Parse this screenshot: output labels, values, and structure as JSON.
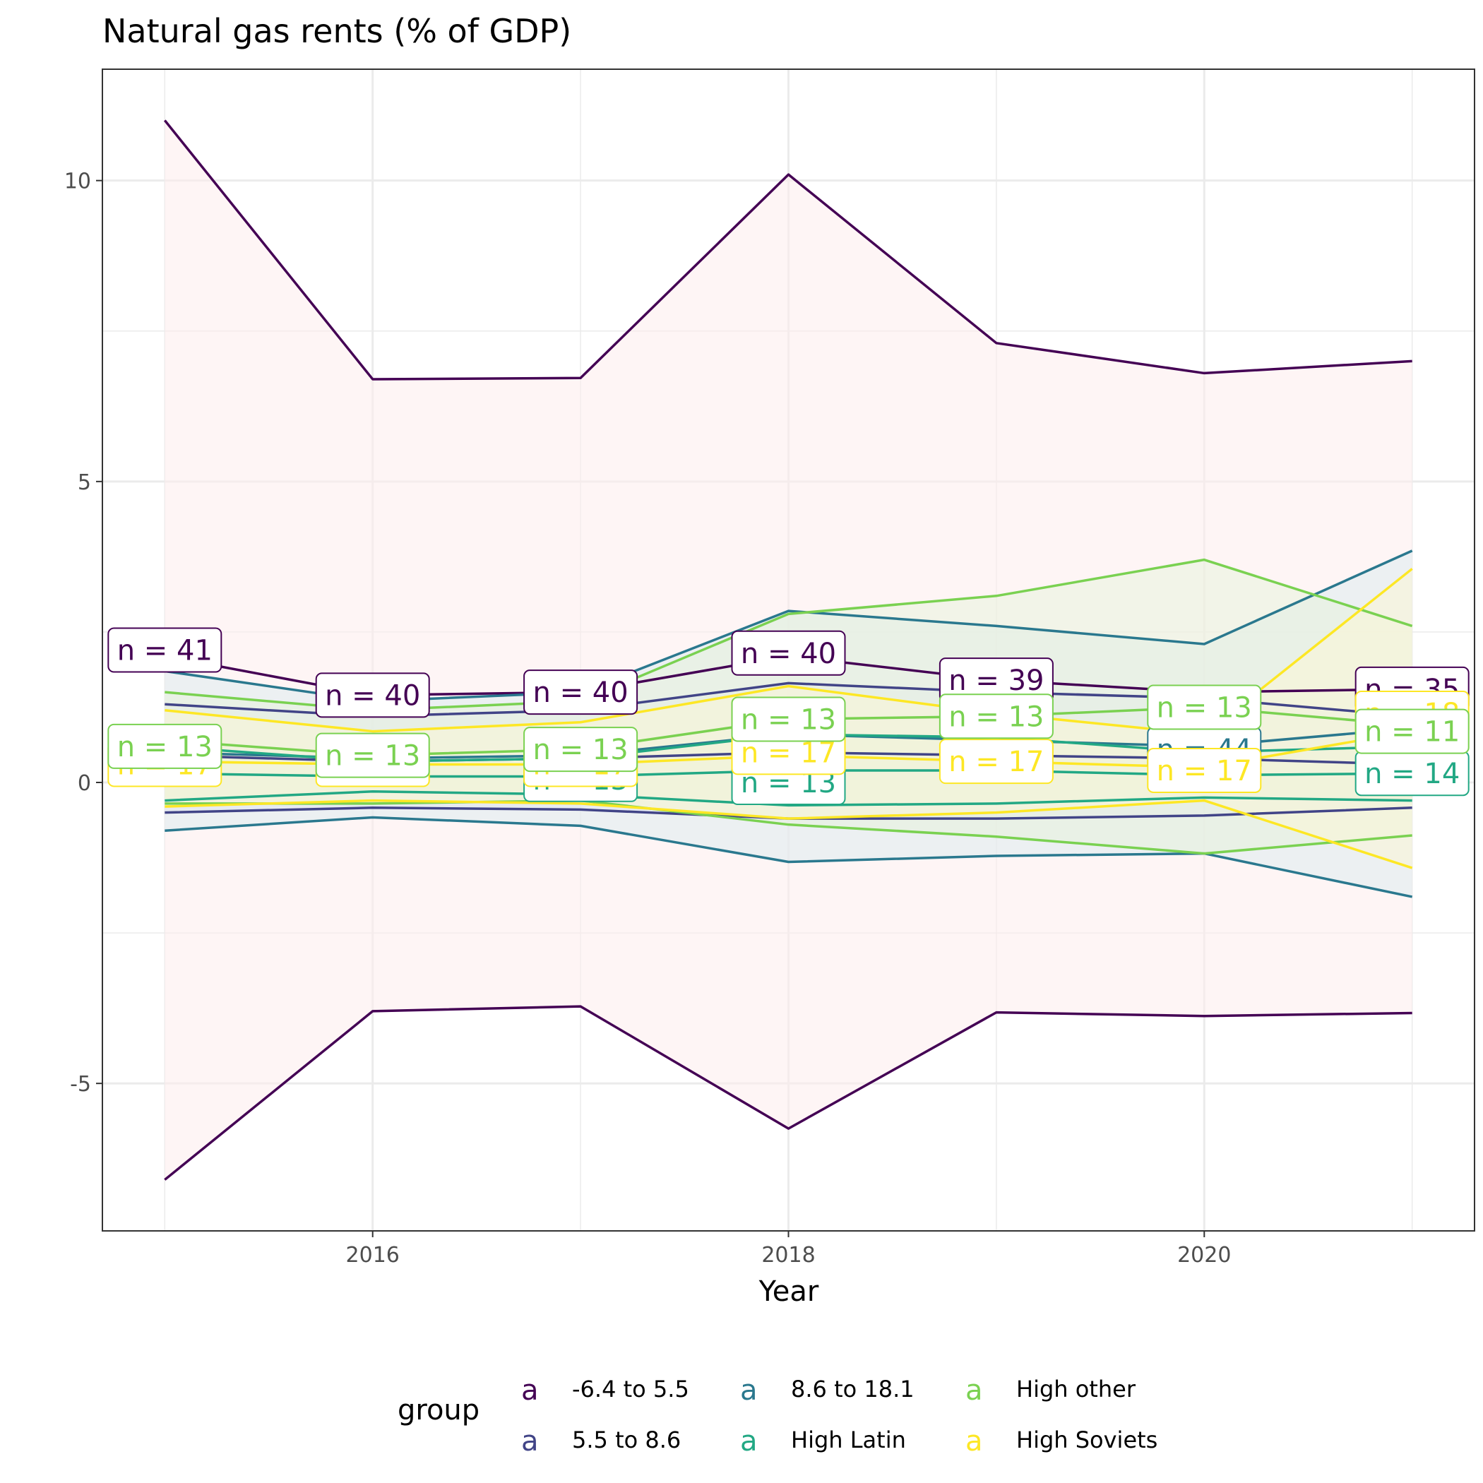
{
  "chart_data": {
    "type": "line",
    "title": "Natural gas rents (% of GDP)",
    "xlabel": "Year",
    "ylabel": "",
    "xlim": [
      2014.7,
      2021.3
    ],
    "ylim": [
      -7.45,
      11.85
    ],
    "x_ticks": [
      2016,
      2018,
      2020
    ],
    "y_ticks": [
      -5,
      0,
      5,
      10
    ],
    "y_tick_labels": [
      "-5",
      "0",
      "5",
      "10"
    ],
    "grid": true,
    "legend": {
      "title": "group",
      "position": "bottom",
      "key_glyph": "a",
      "entries": [
        "-6.4 to 5.5",
        "5.5 to 8.6",
        "8.6 to 18.1",
        "High Latin",
        "High other",
        "High Soviets"
      ]
    },
    "x": [
      2015,
      2016,
      2017,
      2018,
      2019,
      2020,
      2021
    ],
    "series": [
      {
        "name": "-6.4 to 5.5",
        "color": "#440154",
        "fill": "#FDECEC",
        "mean": [
          2.1,
          1.45,
          1.5,
          2.1,
          1.7,
          1.5,
          1.55
        ],
        "upper": [
          11.0,
          6.7,
          6.72,
          10.1,
          7.3,
          6.8,
          7.0
        ],
        "lower": [
          -6.6,
          -3.8,
          -3.72,
          -5.75,
          -3.82,
          -3.88,
          -3.83
        ]
      },
      {
        "name": "5.5 to 8.6",
        "color": "#414487",
        "fill": "#E6E0F0",
        "mean": [
          0.45,
          0.35,
          0.4,
          0.5,
          0.45,
          0.4,
          0.3
        ],
        "upper": [
          1.3,
          1.1,
          1.2,
          1.65,
          1.5,
          1.4,
          1.1
        ],
        "lower": [
          -0.5,
          -0.42,
          -0.45,
          -0.6,
          -0.6,
          -0.55,
          -0.42
        ]
      },
      {
        "name": "8.6 to 18.1",
        "color": "#2A788E",
        "fill": "#DDEBEE",
        "mean": [
          0.5,
          0.4,
          0.45,
          0.8,
          0.7,
          0.6,
          0.9
        ],
        "upper": [
          1.85,
          1.35,
          1.5,
          2.85,
          2.6,
          2.3,
          3.85
        ],
        "lower": [
          -0.8,
          -0.58,
          -0.72,
          -1.32,
          -1.22,
          -1.18,
          -1.9
        ]
      },
      {
        "name": "High Latin",
        "color": "#22A884",
        "fill": "#DCEFE8",
        "mean": [
          0.15,
          0.1,
          0.1,
          0.2,
          0.2,
          0.12,
          0.15
        ],
        "upper": [
          0.6,
          0.35,
          0.4,
          0.8,
          0.75,
          0.5,
          0.6
        ],
        "lower": [
          -0.3,
          -0.15,
          -0.2,
          -0.38,
          -0.35,
          -0.25,
          -0.3
        ]
      },
      {
        "name": "High other",
        "color": "#7AD151",
        "fill": "#E8F3DC",
        "mean": [
          0.7,
          0.45,
          0.55,
          1.05,
          1.1,
          1.25,
          0.95
        ],
        "upper": [
          1.5,
          1.2,
          1.35,
          2.8,
          3.1,
          3.7,
          2.6
        ],
        "lower": [
          -0.35,
          -0.35,
          -0.3,
          -0.7,
          -0.9,
          -1.18,
          -0.88
        ]
      },
      {
        "name": "High Soviets",
        "color": "#FDE725",
        "fill": "#FBF6D6",
        "mean": [
          0.35,
          0.3,
          0.3,
          0.45,
          0.35,
          0.25,
          0.85
        ],
        "upper": [
          1.2,
          0.85,
          1.0,
          1.6,
          1.15,
          0.8,
          3.55
        ],
        "lower": [
          -0.4,
          -0.3,
          -0.35,
          -0.6,
          -0.5,
          -0.3,
          -1.42
        ]
      }
    ],
    "annotations": [
      {
        "text": "n = 41",
        "x": 2015,
        "y": 2.2,
        "series": 0,
        "align": "left"
      },
      {
        "text": "n = 40",
        "x": 2016,
        "y": 1.45,
        "series": 0,
        "align": "center"
      },
      {
        "text": "n = 40",
        "x": 2017,
        "y": 1.5,
        "series": 0,
        "align": "center"
      },
      {
        "text": "n = 40",
        "x": 2018,
        "y": 2.15,
        "series": 0,
        "align": "center"
      },
      {
        "text": "n = 39",
        "x": 2019,
        "y": 1.7,
        "series": 0,
        "align": "center"
      },
      {
        "text": "n = 35",
        "x": 2021,
        "y": 1.55,
        "series": 0,
        "align": "right"
      },
      {
        "text": "n = 44",
        "x": 2020,
        "y": 0.55,
        "series": 2,
        "align": "center"
      },
      {
        "text": "n = 13",
        "x": 2018,
        "y": 0.0,
        "series": 3,
        "align": "center"
      },
      {
        "text": "n = 13",
        "x": 2017,
        "y": 0.05,
        "series": 3,
        "align": "center"
      },
      {
        "text": "n = 14",
        "x": 2021,
        "y": 0.15,
        "series": 3,
        "align": "right"
      },
      {
        "text": "n = 17",
        "x": 2015,
        "y": 0.3,
        "series": 5,
        "align": "left"
      },
      {
        "text": "n = 17",
        "x": 2016,
        "y": 0.3,
        "series": 5,
        "align": "center"
      },
      {
        "text": "n = 17",
        "x": 2017,
        "y": 0.3,
        "series": 5,
        "align": "center"
      },
      {
        "text": "n = 17",
        "x": 2018,
        "y": 0.5,
        "series": 5,
        "align": "center"
      },
      {
        "text": "n = 17",
        "x": 2019,
        "y": 0.35,
        "series": 5,
        "align": "center"
      },
      {
        "text": "n = 17",
        "x": 2020,
        "y": 0.2,
        "series": 5,
        "align": "center"
      },
      {
        "text": "n = 18",
        "x": 2021,
        "y": 1.15,
        "series": 5,
        "align": "right"
      },
      {
        "text": "n = 13",
        "x": 2015,
        "y": 0.6,
        "series": 4,
        "align": "left"
      },
      {
        "text": "n = 13",
        "x": 2016,
        "y": 0.45,
        "series": 4,
        "align": "center"
      },
      {
        "text": "n = 13",
        "x": 2017,
        "y": 0.55,
        "series": 4,
        "align": "center"
      },
      {
        "text": "n = 13",
        "x": 2018,
        "y": 1.05,
        "series": 4,
        "align": "center"
      },
      {
        "text": "n = 13",
        "x": 2019,
        "y": 1.1,
        "series": 4,
        "align": "center"
      },
      {
        "text": "n = 13",
        "x": 2020,
        "y": 1.25,
        "series": 4,
        "align": "center"
      },
      {
        "text": "n = 11",
        "x": 2021,
        "y": 0.85,
        "series": 4,
        "align": "right"
      }
    ]
  }
}
